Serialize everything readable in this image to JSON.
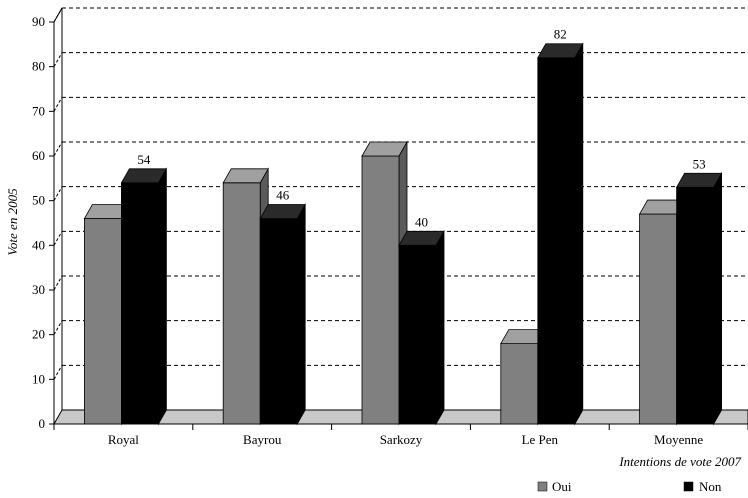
{
  "chart_data": {
    "type": "bar",
    "categories": [
      "Royal",
      "Bayrou",
      "Sarkozy",
      "Le Pen",
      "Moyenne"
    ],
    "series": [
      {
        "name": "Oui",
        "values": [
          46,
          54,
          60,
          18,
          47
        ],
        "color": "#808080",
        "labels": [
          null,
          null,
          null,
          null,
          null
        ]
      },
      {
        "name": "Non",
        "values": [
          54,
          46,
          40,
          82,
          53
        ],
        "color": "#000000",
        "labels": [
          "54",
          "46",
          "40",
          "82",
          "53"
        ]
      }
    ],
    "ylabel": "Vote en 2005",
    "xlabel": "Intentions de vote 2007",
    "ylim": [
      0,
      90
    ],
    "yticks": [
      "0",
      "10",
      "20",
      "30",
      "40",
      "50",
      "60",
      "70",
      "80",
      "90"
    ],
    "grid": true,
    "legend_position": "bottom-right"
  }
}
